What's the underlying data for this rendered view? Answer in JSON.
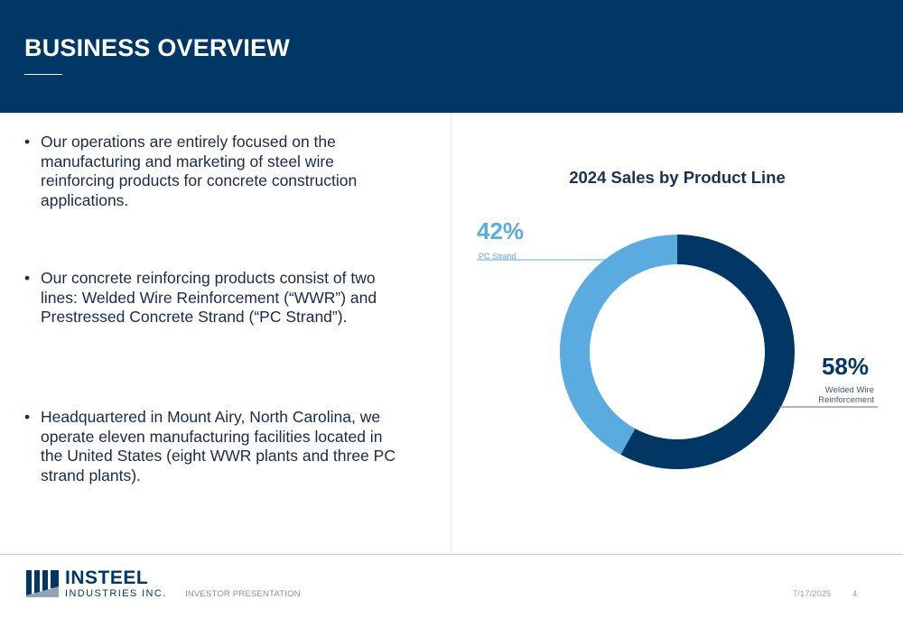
{
  "slide": {
    "title": "BUSINESS OVERVIEW"
  },
  "bullets": [
    "Our operations are entirely focused on the manufacturing and marketing of steel wire reinforcing products for concrete construction applications.",
    "Our concrete reinforcing products consist of two lines: Welded Wire Reinforcement (“WWR”) and Prestressed Concrete Strand (“PC Strand”).",
    "Headquartered in Mount Airy, North Carolina, we operate eleven manufacturing facilities located in the United States (eight WWR plants and three PC strand plants)."
  ],
  "chart_data": {
    "type": "pie",
    "title": "2024 Sales by Product Line",
    "series": [
      {
        "name": "Welded Wire Reinforcement",
        "value": 58,
        "label": "58%",
        "color": "#003764"
      },
      {
        "name": "PC Strand",
        "value": 42,
        "label": "42%",
        "color": "#5aace0"
      }
    ],
    "donut": true
  },
  "footer": {
    "logo_main": "INSTEEL",
    "logo_sub": "INDUSTRIES INC.",
    "label": "INVESTOR PRESENTATION",
    "date": "7/17/2025",
    "page": "4"
  },
  "colors": {
    "header_bg": "#003764",
    "accent_light": "#5aace0"
  }
}
